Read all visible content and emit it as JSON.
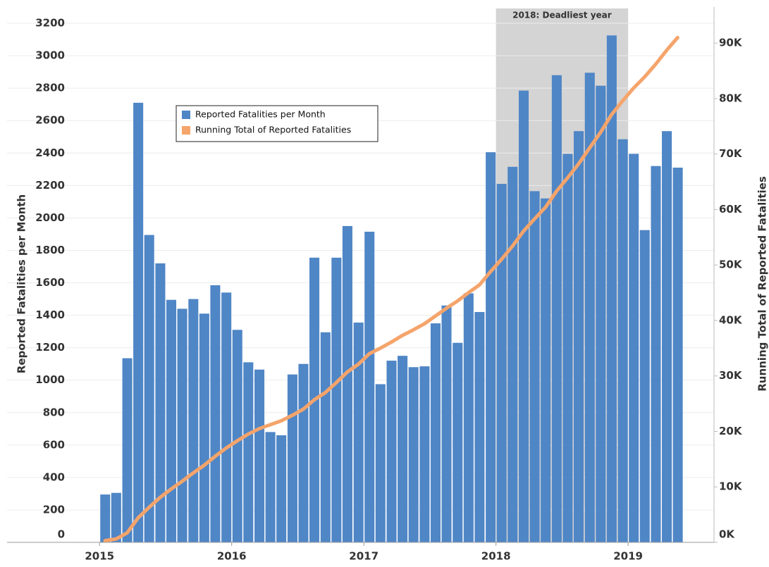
{
  "chart_data": {
    "type": "bar",
    "y_label": "Reported Fatalities per Month",
    "y2_label": "Running Total of Reported Fatalities",
    "annotation": {
      "label": "2018: Deadliest year",
      "x": [
        2018,
        2019
      ],
      "color": "#d4d4d4"
    },
    "x": [
      2015,
      2015.083,
      2015.167,
      2015.25,
      2015.333,
      2015.417,
      2015.5,
      2015.583,
      2015.667,
      2015.75,
      2015.833,
      2015.917,
      2016,
      2016.083,
      2016.167,
      2016.25,
      2016.333,
      2016.417,
      2016.5,
      2016.583,
      2016.667,
      2016.75,
      2016.833,
      2016.917,
      2017,
      2017.083,
      2017.167,
      2017.25,
      2017.333,
      2017.417,
      2017.5,
      2017.583,
      2017.667,
      2017.75,
      2017.833,
      2017.917,
      2018,
      2018.083,
      2018.167,
      2018.25,
      2018.333,
      2018.417,
      2018.5,
      2018.583,
      2018.667,
      2018.75,
      2018.833,
      2018.917,
      2019,
      2019.083,
      2019.167,
      2019.25,
      2019.333
    ],
    "xlim": [
      2014.3,
      2019.65
    ],
    "xticks": [
      2015,
      2016,
      2017,
      2018,
      2019
    ],
    "ylim": [
      0,
      3300
    ],
    "yticks": [
      0,
      200,
      400,
      600,
      800,
      1000,
      1200,
      1400,
      1600,
      1800,
      2000,
      2200,
      2400,
      2600,
      2800,
      3000,
      3200
    ],
    "y2lim": [
      0,
      96500
    ],
    "y2ticks": [
      {
        "value": 0,
        "label": "0K"
      },
      {
        "value": 10000,
        "label": "10K"
      },
      {
        "value": 20000,
        "label": "20K"
      },
      {
        "value": 30000,
        "label": "30K"
      },
      {
        "value": 40000,
        "label": "40K"
      },
      {
        "value": 50000,
        "label": "50K"
      },
      {
        "value": 60000,
        "label": "60K"
      },
      {
        "value": 70000,
        "label": "70K"
      },
      {
        "value": 80000,
        "label": "80K"
      },
      {
        "value": 90000,
        "label": "90K"
      }
    ],
    "grid": true,
    "series": [
      {
        "name": "Reported Fatalities per Month",
        "type": "bar",
        "color": "#4f86c6",
        "values": [
          295,
          305,
          1135,
          2710,
          1895,
          1720,
          1495,
          1440,
          1500,
          1410,
          1585,
          1540,
          1310,
          1110,
          1065,
          680,
          660,
          1035,
          1100,
          1755,
          1295,
          1755,
          1950,
          1355,
          1915,
          975,
          1120,
          1150,
          1080,
          1085,
          1350,
          1460,
          1230,
          1535,
          1420,
          2405,
          2210,
          2315,
          2785,
          2165,
          2120,
          2880,
          2395,
          2535,
          2895,
          2815,
          3125,
          2485,
          2395,
          1925,
          2320,
          2535,
          2310
        ]
      },
      {
        "name": "Running Total of Reported Fatalities",
        "type": "line",
        "axis": "y2",
        "color": "#f5a46b",
        "values": [
          300,
          600,
          1700,
          4400,
          6300,
          8100,
          9600,
          11000,
          12500,
          13900,
          15500,
          17000,
          18300,
          19500,
          20500,
          21200,
          21900,
          22900,
          24000,
          25700,
          27000,
          28800,
          30700,
          32100,
          34000,
          35000,
          36100,
          37300,
          38300,
          39400,
          40800,
          42200,
          43500,
          45000,
          46400,
          48800,
          51000,
          53400,
          56100,
          58300,
          60400,
          63300,
          65700,
          68200,
          71100,
          73900,
          77100,
          79600,
          81900,
          83900,
          86200,
          88700,
          91000
        ]
      }
    ]
  }
}
